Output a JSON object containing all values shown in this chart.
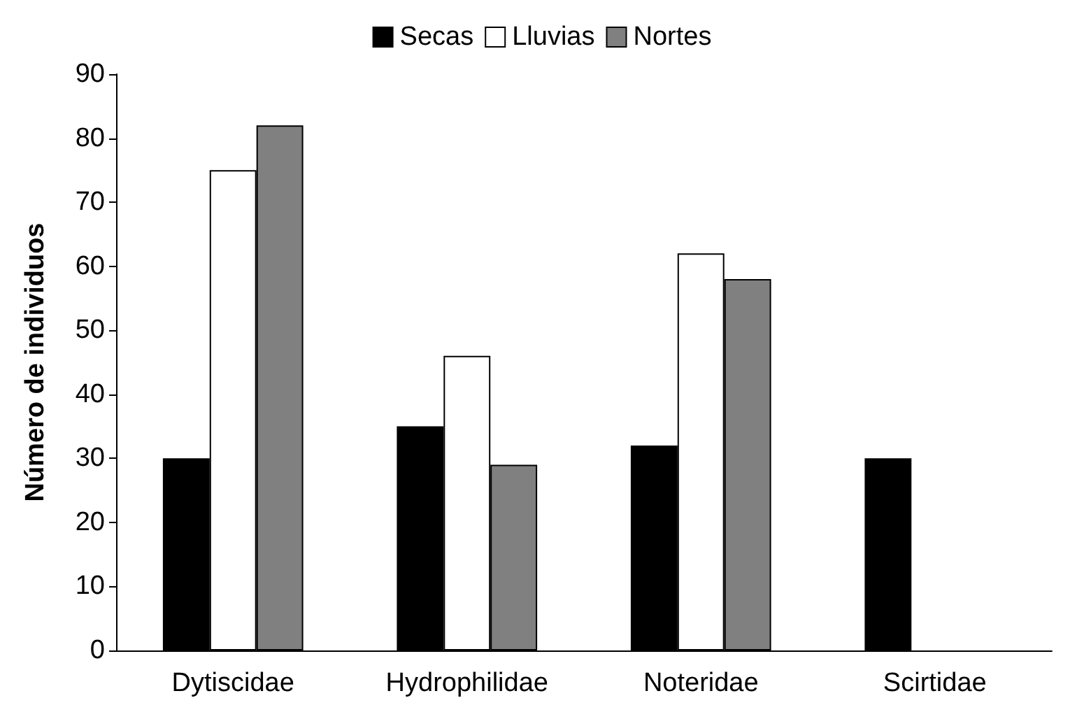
{
  "chart_data": {
    "type": "bar",
    "ylabel": "Número de individuos",
    "categories": [
      "Dytiscidae",
      "Hydrophilidae",
      "Noteridae",
      "Scirtidae"
    ],
    "series": [
      {
        "name": "Secas",
        "color": "#000000",
        "values": [
          30,
          35,
          32,
          30
        ]
      },
      {
        "name": "Lluvias",
        "color": "#ffffff",
        "values": [
          75,
          46,
          62,
          null
        ]
      },
      {
        "name": "Nortes",
        "color": "#808080",
        "values": [
          82,
          29,
          58,
          null
        ]
      }
    ],
    "ylim": [
      0,
      90
    ],
    "yticks": [
      0,
      10,
      20,
      30,
      40,
      50,
      60,
      70,
      80,
      90
    ],
    "grid": false,
    "legend": "top"
  }
}
